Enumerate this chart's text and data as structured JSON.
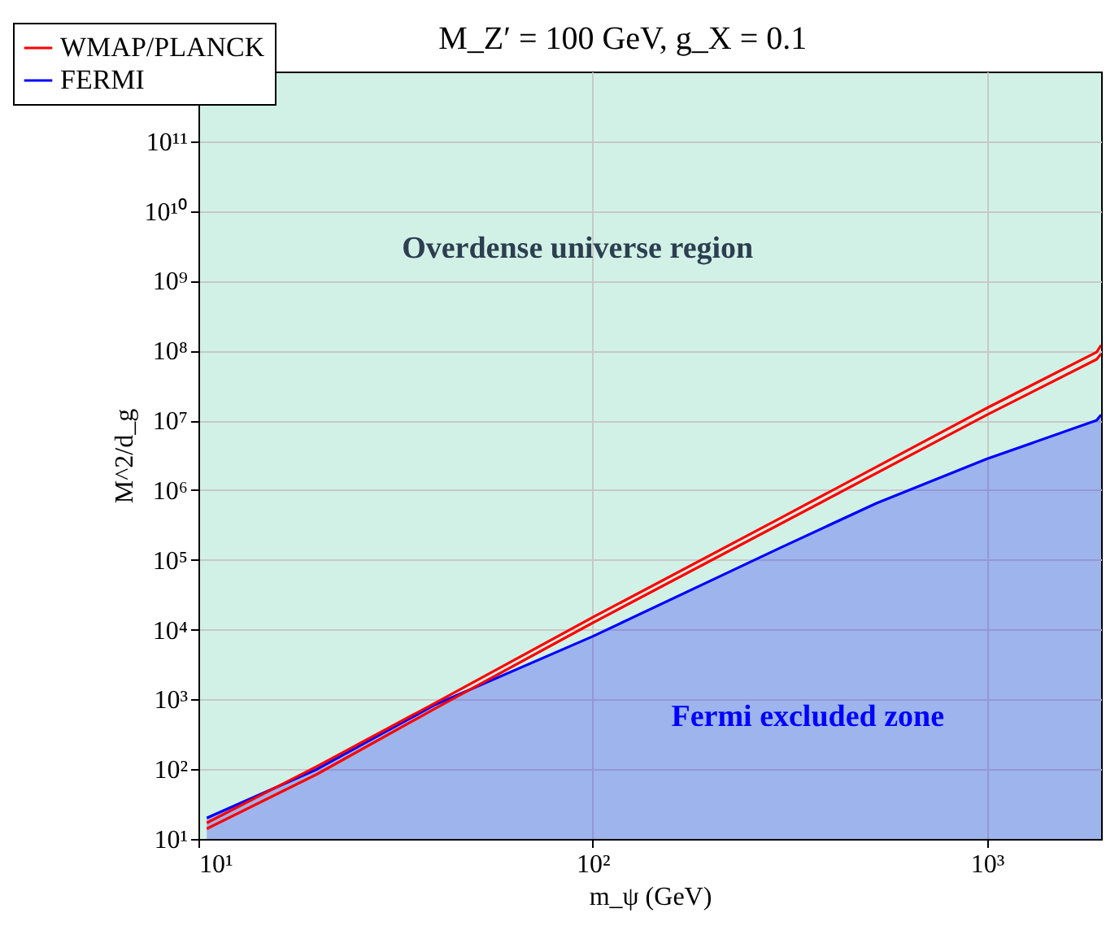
{
  "chart_data": {
    "type": "line",
    "title": "M_Z′ = 100 GeV,   g_X = 0.1",
    "xlabel": "m_ψ (GeV)",
    "ylabel": "M^2/d_g",
    "log": "xy",
    "xlim": [
      10,
      1950
    ],
    "ylim": [
      10,
      1000000000000
    ],
    "xticks": [
      {
        "value": 10,
        "label": "10¹"
      },
      {
        "value": 100,
        "label": "10²"
      },
      {
        "value": 1000,
        "label": "10³"
      }
    ],
    "yticks": [
      {
        "value": 10,
        "label": "10¹"
      },
      {
        "value": 100,
        "label": "10²"
      },
      {
        "value": 1000,
        "label": "10³"
      },
      {
        "value": 10000,
        "label": "10⁴"
      },
      {
        "value": 100000,
        "label": "10⁵"
      },
      {
        "value": 1000000,
        "label": "10⁶"
      },
      {
        "value": 10000000,
        "label": "10⁷"
      },
      {
        "value": 100000000,
        "label": "10⁸"
      },
      {
        "value": 1000000000,
        "label": "10⁹"
      },
      {
        "value": 10000000000,
        "label": "10¹⁰"
      },
      {
        "value": 100000000000,
        "label": "10¹¹"
      }
    ],
    "grid": true,
    "legend": "top left",
    "marker": "none",
    "line_style": "solid",
    "annotations": [
      "Overdense universe region",
      "Fermi excluded zone"
    ],
    "series": [
      {
        "name": "WMAP/PLANCK",
        "color": "#ff0000",
        "x": [
          10.5,
          20,
          40,
          100,
          300,
          1000,
          1900,
          1950
        ],
        "values": [
          17,
          110,
          900,
          15000,
          400000,
          15000000,
          95000000,
          120000000
        ]
      },
      {
        "color": "#ff0000",
        "x": [
          10.5,
          20,
          40,
          100,
          300,
          1000,
          1900,
          1950
        ],
        "values": [
          14,
          85,
          750,
          12500,
          330000,
          12000000,
          75000000,
          90000000
        ]
      },
      {
        "type": "area",
        "name": "FERMI",
        "color": "#0000ff",
        "x": [
          10.5,
          20,
          40,
          100,
          300,
          525,
          1000,
          1900,
          1950
        ],
        "values": [
          20,
          100,
          850,
          8000,
          150000,
          650000,
          2800000,
          10000000,
          12000000
        ]
      }
    ]
  }
}
